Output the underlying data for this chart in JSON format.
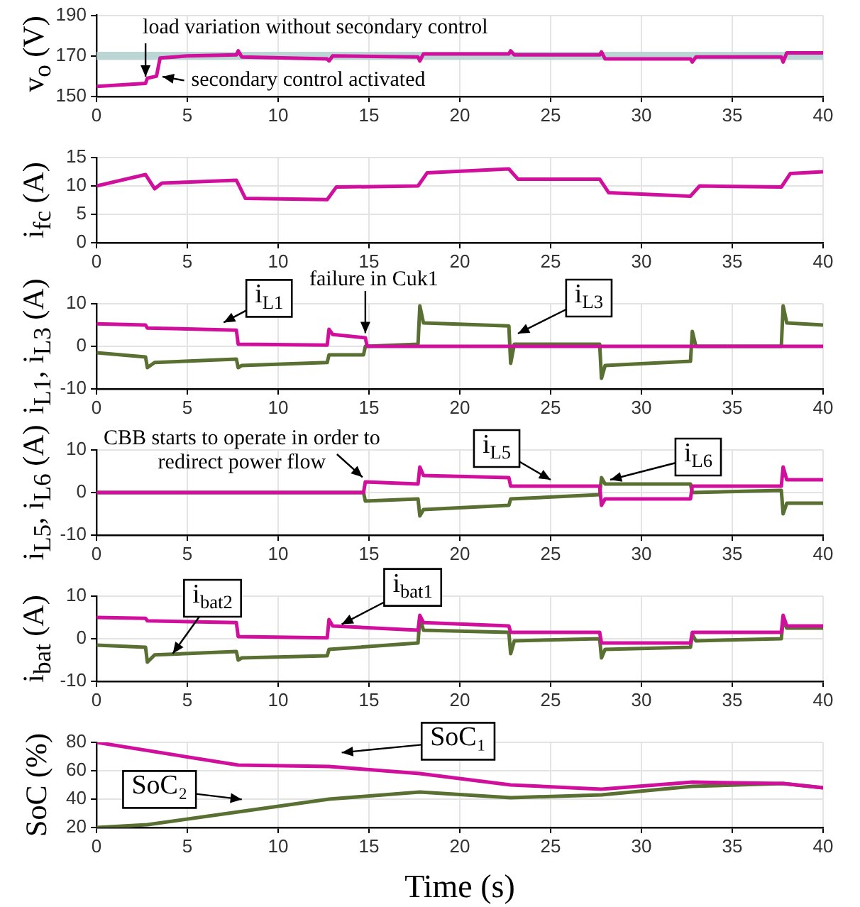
{
  "chart_data": [
    {
      "type": "line",
      "ylabel": "v$_{o}$ (V)",
      "xlim": [
        0,
        40
      ],
      "xticks": [
        0,
        5,
        10,
        15,
        20,
        25,
        30,
        35,
        40
      ],
      "ylim": [
        150,
        190
      ],
      "yticks": [
        150,
        170,
        190
      ],
      "grid": true,
      "marker": "none",
      "bands": [
        {
          "axis": "y",
          "from": 168,
          "to": 172,
          "color": "#b5d0d0"
        }
      ],
      "annotations": [
        {
          "text": "load variation without secondary control",
          "x": 2.7,
          "y": 158
        },
        {
          "text": "secondary control activated",
          "x": 3.5,
          "y": 160
        }
      ],
      "series": [
        {
          "color": "#d0109c",
          "x": [
            0,
            2.7,
            2.8,
            3.3,
            3.5,
            5,
            7.7,
            7.8,
            8,
            12.7,
            12.8,
            13,
            17.7,
            17.8,
            18,
            22.7,
            22.8,
            23,
            27.7,
            27.8,
            28,
            32.7,
            32.8,
            33,
            37.7,
            37.8,
            38,
            40
          ],
          "values": [
            155,
            156.5,
            159,
            160,
            169,
            170,
            170.5,
            172.5,
            169.5,
            168.5,
            167.5,
            170,
            169.5,
            167.5,
            171,
            171,
            172.5,
            170.5,
            170.5,
            172,
            168.5,
            168.5,
            167,
            169.5,
            169.5,
            167,
            171.5,
            171.5
          ]
        }
      ]
    },
    {
      "type": "line",
      "ylabel": "i$_{fc}$ (A)",
      "xlim": [
        0,
        40
      ],
      "xticks": [
        0,
        5,
        10,
        15,
        20,
        25,
        30,
        35,
        40
      ],
      "ylim": [
        0,
        15
      ],
      "yticks": [
        0,
        5,
        10,
        15
      ],
      "grid": true,
      "marker": "none",
      "series": [
        {
          "color": "#d0109c",
          "x": [
            0,
            2.7,
            3.2,
            3.6,
            7.7,
            8.2,
            12.7,
            13.2,
            17.7,
            18.2,
            22.7,
            23.2,
            27.7,
            28.2,
            32.7,
            33.2,
            37.7,
            38.2,
            40
          ],
          "values": [
            10,
            12,
            9.5,
            10.5,
            11,
            7.8,
            7.6,
            9.8,
            10,
            12.3,
            13,
            11.2,
            11.2,
            8.8,
            8.2,
            10,
            9.8,
            12.2,
            12.5
          ]
        }
      ]
    },
    {
      "type": "line",
      "ylabel": "i$_{L1}$, i$_{L3}$ (A)",
      "xlim": [
        0,
        40
      ],
      "xticks": [
        0,
        5,
        10,
        15,
        20,
        25,
        30,
        35,
        40
      ],
      "ylim": [
        -10,
        10
      ],
      "yticks": [
        -10,
        0,
        10
      ],
      "grid": true,
      "marker": "none",
      "annotations": [
        {
          "text": "failure in Cuk1",
          "x": 14.8,
          "y": 2
        }
      ],
      "series": [
        {
          "name": "i$_{L1}$",
          "color": "#d0109c",
          "x": [
            0,
            2.7,
            2.8,
            7.7,
            7.8,
            12.7,
            12.8,
            13,
            14.8,
            14.9,
            40
          ],
          "values": [
            5.3,
            5,
            4.3,
            3.8,
            0.5,
            0.3,
            4,
            2.8,
            2,
            0,
            0
          ]
        },
        {
          "name": "i$_{L3}$",
          "color": "#5a7033",
          "x": [
            0,
            2.7,
            2.8,
            3.2,
            7.7,
            7.8,
            8,
            12.7,
            12.8,
            14.7,
            14.8,
            17.7,
            17.8,
            18,
            22.7,
            22.8,
            23,
            27.7,
            27.8,
            28,
            32.7,
            32.8,
            33,
            37.7,
            37.8,
            38,
            40
          ],
          "values": [
            -1.5,
            -2.5,
            -5,
            -3.8,
            -3,
            -5,
            -4.5,
            -3.8,
            -2,
            -2,
            0,
            0.5,
            9.5,
            5.5,
            4.8,
            -4,
            0.5,
            0.5,
            -7.5,
            -4.5,
            -3.5,
            3.5,
            0,
            0,
            9.5,
            5.5,
            5
          ]
        }
      ]
    },
    {
      "type": "line",
      "ylabel": "i$_{L5}$, i$_{L6}$ (A)",
      "xlim": [
        0,
        40
      ],
      "xticks": [
        0,
        5,
        10,
        15,
        20,
        25,
        30,
        35,
        40
      ],
      "ylim": [
        -10,
        10
      ],
      "yticks": [
        -10,
        0,
        10
      ],
      "grid": true,
      "marker": "none",
      "annotations": [
        {
          "text": "CBB starts to operate in order to redirect power flow",
          "x": 14.8,
          "y": 3
        }
      ],
      "series": [
        {
          "name": "i$_{L5}$",
          "color": "#d0109c",
          "x": [
            0,
            14.7,
            14.8,
            17.7,
            17.8,
            18,
            22.7,
            22.8,
            27.7,
            27.8,
            28,
            32.7,
            32.8,
            37.7,
            37.8,
            38,
            40
          ],
          "values": [
            0,
            0,
            2.5,
            2,
            6,
            4,
            3.5,
            1.5,
            1.5,
            -3,
            -1.5,
            -1.5,
            1.5,
            1.5,
            6,
            3,
            3
          ]
        },
        {
          "name": "i$_{L6}$",
          "color": "#5a7033",
          "x": [
            0,
            14.7,
            14.8,
            17.7,
            17.8,
            18,
            22.7,
            22.8,
            27.7,
            27.8,
            28,
            32.7,
            32.8,
            37.7,
            37.8,
            38,
            40
          ],
          "values": [
            0,
            0,
            -2,
            -1.5,
            -5.5,
            -4,
            -3,
            -1.5,
            -0.5,
            3.5,
            2,
            2,
            0,
            0.5,
            -5,
            -2.5,
            -2.5
          ]
        }
      ]
    },
    {
      "type": "line",
      "ylabel": "i$_{bat}$ (A)",
      "xlim": [
        0,
        40
      ],
      "xticks": [
        0,
        5,
        10,
        15,
        20,
        25,
        30,
        35,
        40
      ],
      "ylim": [
        -10,
        10
      ],
      "yticks": [
        -10,
        0,
        10
      ],
      "grid": true,
      "marker": "none",
      "series": [
        {
          "name": "i$_{bat1}$",
          "color": "#d0109c",
          "x": [
            0,
            2.7,
            2.8,
            7.7,
            7.8,
            12.7,
            12.8,
            13,
            17.7,
            17.8,
            18,
            22.7,
            22.8,
            27.7,
            27.8,
            32.7,
            32.8,
            37.7,
            37.8,
            38,
            40
          ],
          "values": [
            5,
            4.8,
            4.2,
            3.8,
            0.5,
            0.2,
            4.5,
            3,
            2,
            5.5,
            3.8,
            3,
            1.5,
            1.5,
            -1,
            -1,
            1.5,
            1.5,
            5.5,
            3,
            3
          ]
        },
        {
          "name": "i$_{bat2}$",
          "color": "#5a7033",
          "x": [
            0,
            2.7,
            2.8,
            3.2,
            7.7,
            7.8,
            8,
            12.7,
            12.8,
            17.7,
            17.8,
            18,
            22.7,
            22.8,
            23,
            27.7,
            27.8,
            28,
            32.7,
            32.8,
            33,
            37.7,
            37.8,
            38,
            40
          ],
          "values": [
            -1.5,
            -2,
            -5.5,
            -3.8,
            -3,
            -5,
            -4.5,
            -4,
            -2.5,
            -1,
            5,
            2,
            1.5,
            -3.5,
            -0.5,
            0,
            -4.5,
            -2.5,
            -2,
            1,
            -0.5,
            0,
            4.5,
            2.5,
            2.5
          ]
        }
      ]
    },
    {
      "type": "line",
      "ylabel": "SoC (%)",
      "xlabel": "Time (s)",
      "xlim": [
        0,
        40
      ],
      "xticks": [
        0,
        5,
        10,
        15,
        20,
        25,
        30,
        35,
        40
      ],
      "ylim": [
        20,
        80
      ],
      "yticks": [
        20,
        40,
        60,
        80
      ],
      "grid": true,
      "marker": "none",
      "series": [
        {
          "name": "SoC₁",
          "color": "#d0109c",
          "x": [
            0,
            7.8,
            12.8,
            17.8,
            22.8,
            27.8,
            32.8,
            37.8,
            40
          ],
          "values": [
            80,
            64,
            63,
            58,
            50,
            47,
            52,
            51,
            48
          ]
        },
        {
          "name": "SoC₂",
          "color": "#5a7033",
          "x": [
            0,
            2.8,
            7.8,
            12.8,
            17.8,
            22.8,
            27.8,
            32.8,
            37.8,
            40
          ],
          "values": [
            20,
            22,
            31,
            40,
            45,
            41,
            43,
            49,
            51,
            48
          ]
        }
      ]
    }
  ]
}
